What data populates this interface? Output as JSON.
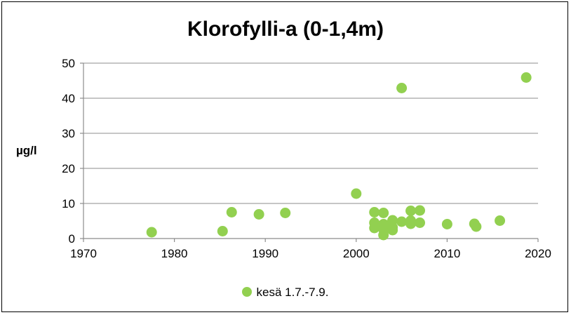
{
  "chart_data": {
    "type": "scatter",
    "title": "Klorofylli-a (0-1,4m)",
    "xlabel": "",
    "ylabel": "µg/l",
    "xlim": [
      1970,
      2020
    ],
    "ylim": [
      0,
      50
    ],
    "x_ticks": [
      "1970",
      "1980",
      "1990",
      "2000",
      "2010",
      "2020"
    ],
    "y_ticks": [
      "0",
      "10",
      "20",
      "30",
      "40",
      "50"
    ],
    "grid": "horizontal",
    "legend_position": "bottom",
    "series": [
      {
        "name": "kesä 1.7.-7.9.",
        "color": "#92d050",
        "points": [
          {
            "x": 1977.5,
            "y": 1.8
          },
          {
            "x": 1985.3,
            "y": 2.1
          },
          {
            "x": 1986.3,
            "y": 7.5
          },
          {
            "x": 1989.3,
            "y": 6.9
          },
          {
            "x": 1992.2,
            "y": 7.3
          },
          {
            "x": 2000.0,
            "y": 12.8
          },
          {
            "x": 2002.0,
            "y": 7.5
          },
          {
            "x": 2002.0,
            "y": 4.5
          },
          {
            "x": 2002.0,
            "y": 3.0
          },
          {
            "x": 2003.0,
            "y": 7.3
          },
          {
            "x": 2003.0,
            "y": 4.1
          },
          {
            "x": 2003.0,
            "y": 2.6
          },
          {
            "x": 2003.0,
            "y": 1.0
          },
          {
            "x": 2003.5,
            "y": 3.8
          },
          {
            "x": 2004.0,
            "y": 5.2
          },
          {
            "x": 2004.0,
            "y": 3.2
          },
          {
            "x": 2004.0,
            "y": 2.4
          },
          {
            "x": 2005.0,
            "y": 42.9
          },
          {
            "x": 2005.0,
            "y": 4.8
          },
          {
            "x": 2006.0,
            "y": 7.9
          },
          {
            "x": 2006.0,
            "y": 5.1
          },
          {
            "x": 2006.0,
            "y": 4.2
          },
          {
            "x": 2007.0,
            "y": 8.0
          },
          {
            "x": 2007.0,
            "y": 4.5
          },
          {
            "x": 2010.0,
            "y": 4.1
          },
          {
            "x": 2013.0,
            "y": 4.2
          },
          {
            "x": 2013.2,
            "y": 3.4
          },
          {
            "x": 2015.8,
            "y": 5.1
          },
          {
            "x": 2018.7,
            "y": 45.9
          }
        ]
      }
    ]
  }
}
